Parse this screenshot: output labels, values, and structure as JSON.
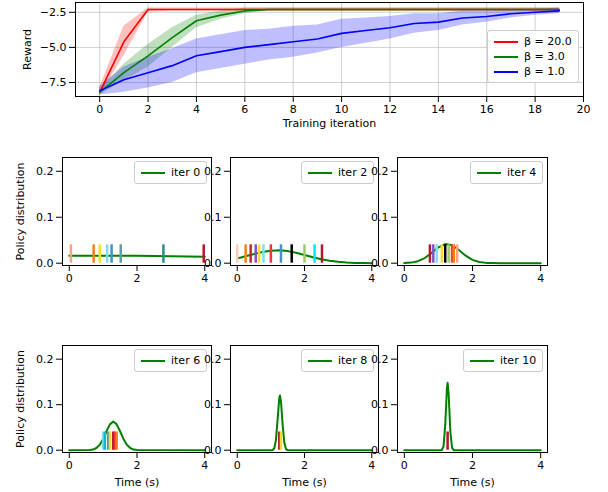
{
  "chart_data": [
    {
      "type": "line",
      "xlabel": "Training iteration",
      "ylabel": "Reward",
      "xlim": [
        -1,
        20
      ],
      "ylim": [
        -8.5,
        -1.8
      ],
      "xticks": [
        0,
        2,
        4,
        6,
        8,
        10,
        12,
        14,
        16,
        18,
        20
      ],
      "yticks": [
        {
          "value": -7.5,
          "label": "−7.5"
        },
        {
          "value": -5.0,
          "label": "−5.0"
        },
        {
          "value": -2.5,
          "label": "−2.5"
        }
      ],
      "grid": true,
      "legend": "upper right",
      "x": [
        0,
        1,
        2,
        3,
        4,
        5,
        6,
        7,
        8,
        9,
        10,
        11,
        12,
        13,
        14,
        15,
        16,
        17,
        18,
        19
      ],
      "series": [
        {
          "name": "β = 20.0",
          "color": "#ff0000",
          "values": [
            -8.2,
            -4.6,
            -2.3,
            -2.3,
            -2.3,
            -2.3,
            -2.3,
            -2.3,
            -2.3,
            -2.3,
            -2.3,
            -2.3,
            -2.3,
            -2.3,
            -2.3,
            -2.3,
            -2.3,
            -2.3,
            -2.3,
            -2.3
          ],
          "lower": [
            -8.5,
            -5.6,
            -2.5,
            -2.4,
            -2.4,
            -2.4,
            -2.4,
            -2.4,
            -2.4,
            -2.4,
            -2.4,
            -2.4,
            -2.4,
            -2.4,
            -2.4,
            -2.4,
            -2.4,
            -2.4,
            -2.4,
            -2.4
          ],
          "upper": [
            -7.9,
            -3.5,
            -2.2,
            -2.2,
            -2.2,
            -2.2,
            -2.2,
            -2.2,
            -2.2,
            -2.2,
            -2.2,
            -2.2,
            -2.2,
            -2.2,
            -2.2,
            -2.2,
            -2.2,
            -2.2,
            -2.2,
            -2.2
          ]
        },
        {
          "name": "β = 3.0",
          "color": "#008000",
          "values": [
            -8.2,
            -6.8,
            -5.6,
            -4.3,
            -3.1,
            -2.7,
            -2.4,
            -2.3,
            -2.3,
            -2.3,
            -2.3,
            -2.3,
            -2.3,
            -2.3,
            -2.3,
            -2.3,
            -2.3,
            -2.3,
            -2.3,
            -2.3
          ],
          "lower": [
            -8.4,
            -7.4,
            -6.4,
            -5.0,
            -3.6,
            -3.0,
            -2.6,
            -2.4,
            -2.4,
            -2.4,
            -2.4,
            -2.4,
            -2.4,
            -2.4,
            -2.4,
            -2.4,
            -2.4,
            -2.4,
            -2.4,
            -2.4
          ],
          "upper": [
            -8.0,
            -6.2,
            -4.8,
            -3.6,
            -2.7,
            -2.4,
            -2.2,
            -2.2,
            -2.2,
            -2.2,
            -2.2,
            -2.2,
            -2.2,
            -2.2,
            -2.2,
            -2.2,
            -2.2,
            -2.2,
            -2.2,
            -2.2
          ]
        },
        {
          "name": "β = 1.0",
          "color": "#0000ff",
          "values": [
            -8.1,
            -7.3,
            -6.8,
            -6.3,
            -5.6,
            -5.3,
            -5.0,
            -4.8,
            -4.6,
            -4.4,
            -4.0,
            -3.8,
            -3.6,
            -3.3,
            -3.2,
            -2.9,
            -2.8,
            -2.6,
            -2.5,
            -2.4
          ],
          "lower": [
            -8.4,
            -8.2,
            -7.9,
            -7.5,
            -6.8,
            -6.5,
            -6.2,
            -5.9,
            -5.7,
            -5.4,
            -5.0,
            -4.7,
            -4.4,
            -4.0,
            -3.8,
            -3.4,
            -3.2,
            -2.9,
            -2.7,
            -2.6
          ],
          "upper": [
            -7.8,
            -6.4,
            -5.7,
            -5.1,
            -4.4,
            -4.1,
            -3.8,
            -3.7,
            -3.5,
            -3.4,
            -3.0,
            -2.9,
            -2.8,
            -2.6,
            -2.6,
            -2.4,
            -2.4,
            -2.3,
            -2.3,
            -2.2
          ]
        }
      ]
    },
    {
      "type": "line",
      "ylabel": "Policy distribution",
      "xlim": [
        -0.2,
        4.2
      ],
      "ylim": [
        -0.005,
        0.23
      ],
      "xticks": [
        0,
        2,
        4
      ],
      "yticks": [
        {
          "value": 0,
          "label": "0.0"
        },
        {
          "value": 0.1,
          "label": "0.1"
        },
        {
          "value": 0.2,
          "label": "0.2"
        }
      ],
      "grid": false,
      "legend": "upper right",
      "series": [
        {
          "name": "iter 0",
          "type": "line",
          "color": "#008000",
          "x": [
            0,
            0.5,
            1,
            1.5,
            2,
            2.5,
            3,
            3.5,
            4
          ],
          "values": [
            0.016,
            0.016,
            0.016,
            0.016,
            0.016,
            0.0155,
            0.015,
            0.0145,
            0.014
          ]
        },
        {
          "type": "bar",
          "x": [
            0.05,
            0.72,
            0.9,
            1.12,
            1.25,
            1.52,
            2.78,
            3.97
          ],
          "values": [
            0.04,
            0.04,
            0.04,
            0.04,
            0.04,
            0.04,
            0.04,
            0.04
          ],
          "colors": [
            "#f4a582",
            "#ff7f0e",
            "#ffd92f",
            "#80deea",
            "#4292c6",
            "#5f9ea0",
            "#2e8b8b",
            "#b2182b"
          ]
        }
      ]
    },
    {
      "type": "line",
      "xlim": [
        -0.2,
        4.2
      ],
      "ylim": [
        -0.005,
        0.23
      ],
      "xticks": [
        0,
        2,
        4
      ],
      "yticks": [
        {
          "value": 0,
          "label": "0.0"
        },
        {
          "value": 0.1,
          "label": "0.1"
        },
        {
          "value": 0.2,
          "label": "0.2"
        }
      ],
      "grid": false,
      "legend": "upper right",
      "series": [
        {
          "name": "iter 2",
          "type": "line",
          "color": "#008000",
          "x": [
            0,
            0.25,
            0.5,
            0.75,
            1,
            1.25,
            1.5,
            1.75,
            2,
            2.25,
            2.5,
            2.75,
            3,
            3.25,
            3.5,
            3.75,
            4
          ],
          "values": [
            0.0103,
            0.015,
            0.0199,
            0.0243,
            0.0272,
            0.028,
            0.0263,
            0.0227,
            0.018,
            0.0131,
            0.0087,
            0.0053,
            0.003,
            0.0015,
            0.0007,
            0.0003,
            0.0001
          ]
        },
        {
          "type": "bar",
          "x": [
            0.0,
            0.25,
            0.4,
            0.55,
            0.65,
            0.78,
            1.0,
            1.3,
            1.62,
            2.0,
            2.3,
            2.52
          ],
          "values": [
            0.04,
            0.04,
            0.04,
            0.04,
            0.04,
            0.04,
            0.04,
            0.04,
            0.04,
            0.04,
            0.04,
            0.04
          ],
          "colors": [
            "#ffccbc",
            "#ff7f0e",
            "#c62828",
            "#7e57c2",
            "#ffd92f",
            "#80deea",
            "#e53935",
            "#4292c6",
            "#000000",
            "#9ccc65",
            "#00e5ff",
            "#b2182b"
          ]
        }
      ]
    },
    {
      "type": "line",
      "xlim": [
        -0.2,
        4.2
      ],
      "ylim": [
        -0.005,
        0.23
      ],
      "xticks": [
        0,
        2,
        4
      ],
      "yticks": [
        {
          "value": 0,
          "label": "0.0"
        },
        {
          "value": 0.1,
          "label": "0.1"
        },
        {
          "value": 0.2,
          "label": "0.2"
        }
      ],
      "grid": false,
      "legend": "upper right",
      "series": [
        {
          "name": "iter 4",
          "type": "line",
          "color": "#008000",
          "x": [
            0,
            0.2,
            0.4,
            0.6,
            0.8,
            1,
            1.2,
            1.4,
            1.6,
            1.8,
            2,
            2.2,
            2.4,
            2.6,
            2.8,
            3,
            3.2,
            3.4,
            3.6,
            3.8,
            4
          ],
          "values": [
            0.0003,
            0.0013,
            0.0044,
            0.0112,
            0.0223,
            0.0346,
            0.0417,
            0.0391,
            0.0286,
            0.0163,
            0.0072,
            0.0025,
            0.0007,
            0.0002,
            0,
            0,
            0,
            0,
            0,
            0,
            0
          ]
        },
        {
          "type": "bar",
          "x": [
            0.75,
            0.85,
            0.95,
            1.1,
            1.2,
            1.3,
            1.4,
            1.45,
            1.55
          ],
          "values": [
            0.04,
            0.04,
            0.04,
            0.04,
            0.04,
            0.04,
            0.04,
            0.04,
            0.04
          ],
          "colors": [
            "#b2182b",
            "#7e57c2",
            "#80deea",
            "#ffd92f",
            "#000000",
            "#9ccc65",
            "#e53935",
            "#ff7f0e",
            "#f4a582"
          ]
        }
      ]
    },
    {
      "type": "line",
      "ylabel": "Policy distribution",
      "xlabel": "Time (s)",
      "xlim": [
        -0.2,
        4.2
      ],
      "ylim": [
        -0.005,
        0.23
      ],
      "xticks": [
        0,
        2,
        4
      ],
      "yticks": [
        {
          "value": 0,
          "label": "0.0"
        },
        {
          "value": 0.1,
          "label": "0.1"
        },
        {
          "value": 0.2,
          "label": "0.2"
        }
      ],
      "grid": false,
      "legend": "upper right",
      "series": [
        {
          "name": "iter 6",
          "type": "line",
          "color": "#008000",
          "x": [
            0,
            0.6,
            0.7,
            0.8,
            0.9,
            1.0,
            1.1,
            1.2,
            1.3,
            1.4,
            1.5,
            1.6,
            1.7,
            1.8,
            1.9,
            2.0,
            4
          ],
          "values": [
            0,
            0.0004,
            0.0015,
            0.0048,
            0.0121,
            0.0248,
            0.0417,
            0.0568,
            0.063,
            0.0568,
            0.0417,
            0.0248,
            0.0121,
            0.0048,
            0.0015,
            0.0004,
            0
          ]
        },
        {
          "type": "bar",
          "x": [
            1.0,
            1.05,
            1.15,
            1.2,
            1.3,
            1.35,
            1.4
          ],
          "values": [
            0.04,
            0.04,
            0.04,
            0.04,
            0.04,
            0.04,
            0.04
          ],
          "colors": [
            "#80deea",
            "#00bcd4",
            "#4292c6",
            "#ffd92f",
            "#b2182b",
            "#e53935",
            "#ff7f0e"
          ]
        }
      ]
    },
    {
      "type": "line",
      "xlabel": "Time (s)",
      "xlim": [
        -0.2,
        4.2
      ],
      "ylim": [
        -0.005,
        0.23
      ],
      "xticks": [
        0,
        2,
        4
      ],
      "yticks": [
        {
          "value": 0,
          "label": "0.0"
        },
        {
          "value": 0.1,
          "label": "0.1"
        },
        {
          "value": 0.2,
          "label": "0.2"
        }
      ],
      "grid": false,
      "legend": "upper right",
      "series": [
        {
          "name": "iter 8",
          "type": "line",
          "color": "#008000",
          "x": [
            0,
            1.0,
            1.05,
            1.1,
            1.15,
            1.2,
            1.25,
            1.27,
            1.3,
            1.35,
            1.4,
            1.45,
            1.5,
            1.55,
            4
          ],
          "values": [
            0,
            0,
            0.0004,
            0.0039,
            0.0219,
            0.0672,
            0.1145,
            0.12,
            0.1079,
            0.0563,
            0.0162,
            0.0026,
            0.0002,
            0,
            0
          ]
        },
        {
          "type": "bar",
          "x": [
            1.25,
            1.3
          ],
          "values": [
            0.04,
            0.04
          ],
          "colors": [
            "#b2182b",
            "#ffd92f"
          ]
        }
      ]
    },
    {
      "type": "line",
      "xlabel": "Time (s)",
      "xlim": [
        -0.2,
        4.2
      ],
      "ylim": [
        -0.005,
        0.23
      ],
      "xticks": [
        0,
        2,
        4
      ],
      "yticks": [
        {
          "value": 0,
          "label": "0.0"
        },
        {
          "value": 0.1,
          "label": "0.1"
        },
        {
          "value": 0.2,
          "label": "0.2"
        }
      ],
      "grid": false,
      "legend": "upper right",
      "series": [
        {
          "name": "iter 10",
          "type": "line",
          "color": "#008000",
          "x": [
            0,
            1.05,
            1.1,
            1.15,
            1.2,
            1.25,
            1.27,
            1.3,
            1.35,
            1.4,
            1.45,
            1.5,
            4
          ],
          "values": [
            0,
            0,
            0.0005,
            0.0083,
            0.0555,
            0.1366,
            0.148,
            0.1236,
            0.0411,
            0.005,
            0.0002,
            0,
            0
          ]
        },
        {
          "type": "bar",
          "x": [
            1.27
          ],
          "values": [
            0.04
          ],
          "colors": [
            "#b2182b"
          ]
        }
      ]
    }
  ]
}
